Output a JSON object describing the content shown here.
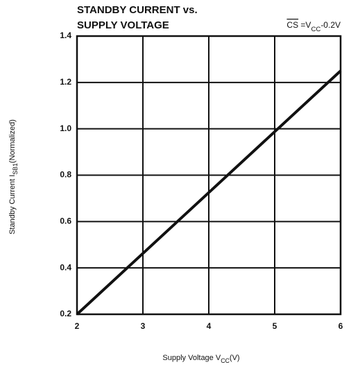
{
  "chart_data": {
    "type": "line",
    "title": [
      "STANDBY CURRENT vs.",
      "SUPPLY VOLTAGE"
    ],
    "annotation": [
      {
        "text": "CS",
        "overline": true
      },
      {
        "text": " =V"
      },
      {
        "text": "CC",
        "sub": true
      },
      {
        "text": "-0.2V"
      }
    ],
    "x_label": [
      {
        "text": "Supply Voltage V"
      },
      {
        "text": "CC",
        "sub": true
      },
      {
        "text": "(V)"
      }
    ],
    "y_label": [
      {
        "text": "Standby Current I"
      },
      {
        "text": "SB1",
        "sub": true
      },
      {
        "text": "(Normalized)"
      }
    ],
    "x": [
      2,
      6
    ],
    "series": [
      {
        "color": "#111111",
        "values": [
          0.2,
          1.25
        ]
      }
    ],
    "xlim": [
      2,
      6
    ],
    "xticks": [
      2,
      3,
      4,
      5,
      6
    ],
    "ylim": [
      0.2,
      1.4
    ],
    "yticks": [
      0.2,
      0.4,
      0.6,
      0.8,
      {
        "value": 1,
        "label": "1.0"
      },
      1.2,
      1.4
    ],
    "grid": true
  }
}
